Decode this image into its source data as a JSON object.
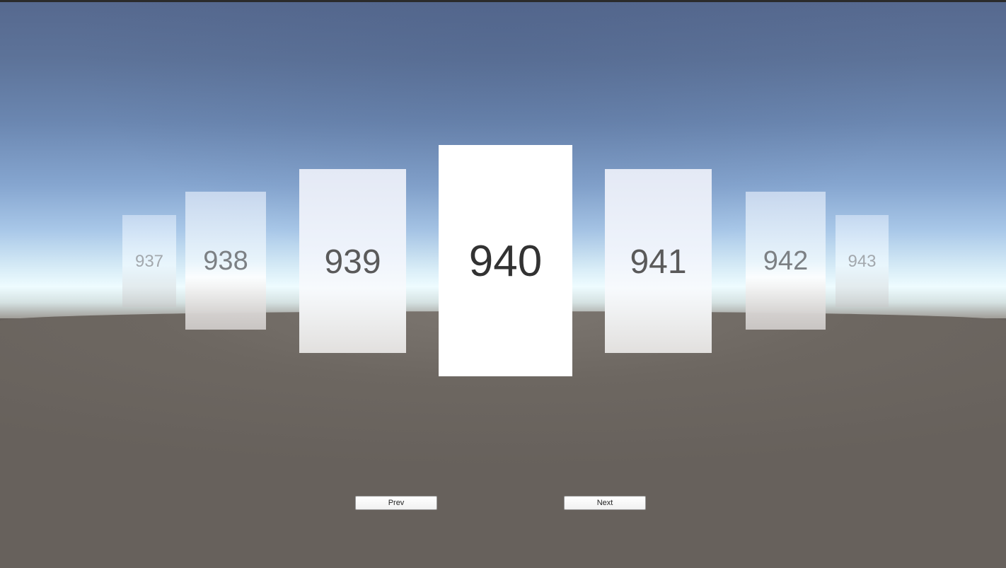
{
  "carousel": {
    "cards": [
      {
        "label": "937"
      },
      {
        "label": "938"
      },
      {
        "label": "939"
      },
      {
        "label": "940"
      },
      {
        "label": "941"
      },
      {
        "label": "942"
      },
      {
        "label": "943"
      }
    ],
    "selected": "940"
  },
  "controls": {
    "prev_label": "Prev",
    "next_label": "Next"
  },
  "colors": {
    "sky_top": "#56698f",
    "horizon": "#eefcff",
    "ground": "#67615c",
    "card_active": "#ffffff"
  }
}
